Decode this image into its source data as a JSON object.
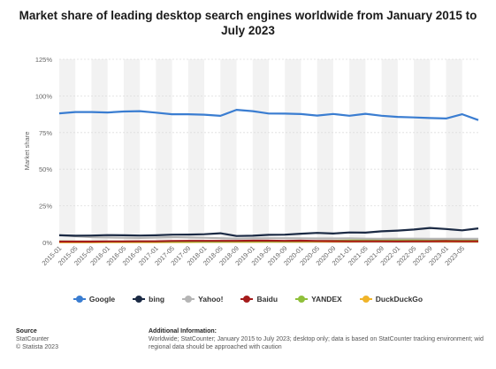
{
  "title": "Market share of leading desktop search engines worldwide from January 2015 to July 2023",
  "chart_data": {
    "type": "line",
    "ylabel": "Market share",
    "ylim": [
      0,
      125
    ],
    "yticks": [
      "0%",
      "25%",
      "50%",
      "75%",
      "100%",
      "125%"
    ],
    "ytick_values": [
      0,
      25,
      50,
      75,
      100,
      125
    ],
    "grid": true,
    "legend_position": "bottom",
    "x": [
      "2015-01",
      "2015-05",
      "2015-09",
      "2016-01",
      "2016-05",
      "2016-09",
      "2017-01",
      "2017-05",
      "2017-09",
      "2018-01",
      "2018-05",
      "2018-09",
      "2019-01",
      "2019-05",
      "2019-09",
      "2020-01",
      "2020-05",
      "2020-09",
      "2021-01",
      "2021-05",
      "2021-09",
      "2022-01",
      "2022-05",
      "2022-09",
      "2023-01",
      "2023-05",
      "2023-07"
    ],
    "xtick_labels": [
      "2015-01",
      "2015-05",
      "2015-09",
      "2016-01",
      "2016-05",
      "2016-09",
      "2017-01",
      "2017-05",
      "2017-09",
      "2018-01",
      "2018-05",
      "2018-09",
      "2019-01",
      "2019-05",
      "2019-09",
      "2020-01",
      "2020-05",
      "2020-09",
      "2021-01",
      "2021-05",
      "2021-09",
      "2022-01",
      "2022-05",
      "2022-09",
      "2023-01",
      "2023-05"
    ],
    "series": [
      {
        "name": "Google",
        "color": "#3a7dd1",
        "values": [
          88.1,
          89.0,
          89.0,
          88.7,
          89.4,
          89.6,
          88.6,
          87.5,
          87.5,
          87.2,
          86.4,
          90.5,
          89.6,
          88.0,
          87.9,
          87.6,
          86.6,
          87.7,
          86.5,
          87.8,
          86.5,
          85.7,
          85.3,
          84.9,
          84.6,
          87.5,
          83.5
        ]
      },
      {
        "name": "bing",
        "color": "#1b2a44",
        "values": [
          4.9,
          4.6,
          4.7,
          5.0,
          4.9,
          4.7,
          4.9,
          5.3,
          5.4,
          5.6,
          6.3,
          4.4,
          4.6,
          5.2,
          5.3,
          6.0,
          6.5,
          6.1,
          6.8,
          6.7,
          7.6,
          8.1,
          8.8,
          9.9,
          9.2,
          8.3,
          9.6
        ]
      },
      {
        "name": "Yahoo!",
        "color": "#b5b5b5",
        "values": [
          5.0,
          4.2,
          3.6,
          3.4,
          3.2,
          3.1,
          3.3,
          3.6,
          3.4,
          3.2,
          2.9,
          2.6,
          2.8,
          2.9,
          2.9,
          2.8,
          2.7,
          2.7,
          2.8,
          2.6,
          2.5,
          2.6,
          2.6,
          2.5,
          2.5,
          2.5,
          2.5
        ]
      },
      {
        "name": "Baidu",
        "color": "#a51b1b",
        "values": [
          0.6,
          0.6,
          0.6,
          0.7,
          0.7,
          0.8,
          0.8,
          1.0,
          1.1,
          1.1,
          1.1,
          1.1,
          1.2,
          1.2,
          1.1,
          1.2,
          1.0,
          0.9,
          0.8,
          0.8,
          0.8,
          0.7,
          0.8,
          0.8,
          0.9,
          0.8,
          0.8
        ]
      },
      {
        "name": "YANDEX",
        "color": "#8fc03a",
        "values": [
          0.7,
          0.6,
          0.6,
          0.6,
          0.6,
          0.6,
          0.6,
          0.6,
          0.6,
          0.6,
          0.6,
          0.7,
          0.7,
          0.7,
          0.7,
          0.8,
          0.9,
          1.1,
          1.3,
          1.4,
          1.5,
          1.6,
          1.6,
          1.5,
          1.4,
          1.5,
          1.6
        ]
      },
      {
        "name": "DuckDuckGo",
        "color": "#f0b429",
        "values": [
          0.1,
          0.1,
          0.1,
          0.2,
          0.2,
          0.2,
          0.2,
          0.3,
          0.3,
          0.4,
          0.4,
          0.4,
          0.4,
          0.5,
          0.5,
          0.5,
          0.6,
          0.6,
          0.6,
          0.7,
          0.7,
          0.7,
          0.7,
          0.7,
          0.6,
          0.6,
          0.6
        ]
      }
    ]
  },
  "footer": {
    "source_heading": "Source",
    "source_lines": [
      "StatCounter",
      "© Statista 2023"
    ],
    "info_heading": "Additional Information:",
    "info_lines": [
      "Worldwide; StatCounter; January 2015 to July 2023; desktop only; data is based on StatCounter tracking environment; wid",
      "regional data should be approached with caution"
    ]
  }
}
